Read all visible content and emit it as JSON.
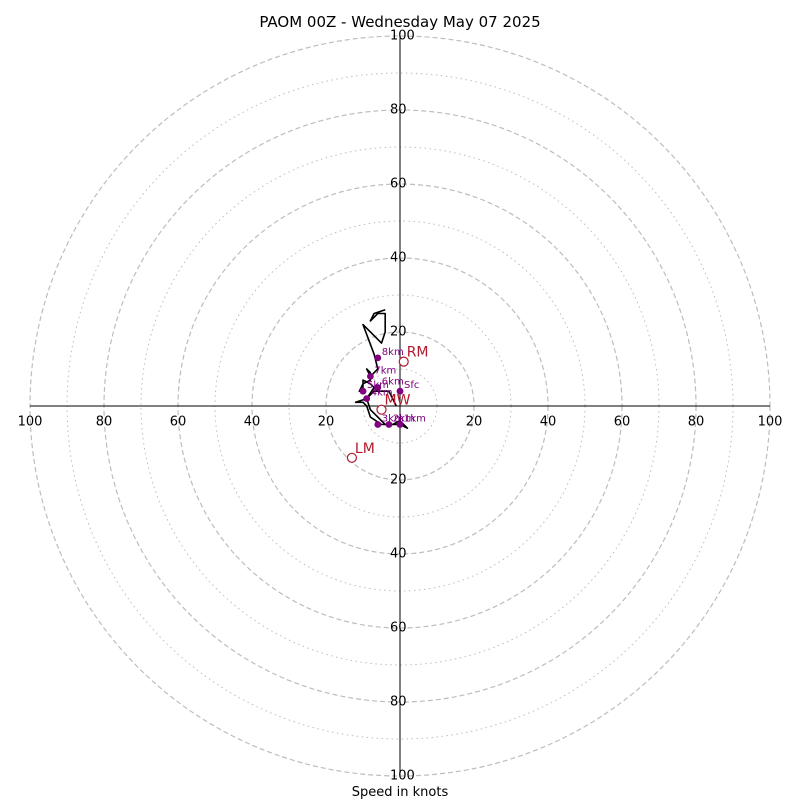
{
  "chart_data": {
    "type": "hodograph",
    "title": "PAOM 00Z - Wednesday May 07 2025",
    "xlabel": "Speed in knots",
    "units": "knots",
    "rings_major": [
      20,
      40,
      60,
      80,
      100
    ],
    "rings_minor": [
      10,
      30,
      50,
      70,
      90
    ],
    "tick_labels": [
      "20",
      "40",
      "60",
      "80",
      "100"
    ],
    "range": [
      -100,
      100
    ],
    "grid": true,
    "colors": {
      "trace": "#000000",
      "levels": "#800080",
      "motion": "#b2182b",
      "grid": "#bdbdbd",
      "axes": "#000000"
    },
    "series": [
      {
        "points": [
          [
            -1,
            0
          ],
          [
            -3,
            4
          ],
          [
            -7,
            4
          ],
          [
            -9,
            2
          ],
          [
            -8,
            -1
          ],
          [
            -6,
            -3
          ],
          [
            -5,
            -4
          ],
          [
            -4,
            -5
          ],
          [
            -3,
            -5
          ],
          [
            0,
            -5
          ],
          [
            2,
            -6
          ],
          [
            0,
            -4
          ],
          [
            -2,
            -5
          ],
          [
            -5,
            -5
          ],
          [
            -8,
            -3
          ],
          [
            -9,
            0
          ],
          [
            -10,
            1
          ],
          [
            -12,
            1
          ],
          [
            -9,
            2
          ],
          [
            -7,
            5
          ],
          [
            -8,
            6
          ],
          [
            -10,
            7
          ],
          [
            -10,
            4
          ],
          [
            -11,
            4
          ],
          [
            -10,
            6
          ],
          [
            -8,
            7
          ],
          [
            -8,
            9
          ],
          [
            -9,
            10
          ],
          [
            -8,
            8
          ],
          [
            -7,
            9
          ],
          [
            -6,
            10
          ],
          [
            -7,
            14
          ],
          [
            -10,
            22
          ],
          [
            -5,
            17
          ],
          [
            -4,
            20
          ],
          [
            -4,
            25
          ],
          [
            -6,
            25
          ],
          [
            -8,
            23
          ],
          [
            -7,
            25
          ],
          [
            -4,
            26
          ]
        ]
      }
    ],
    "levels": [
      {
        "label": "Sfc",
        "u": 0,
        "v": 4
      },
      {
        "label": "1km",
        "u": 0,
        "v": -5
      },
      {
        "label": "2km",
        "u": -3,
        "v": -5
      },
      {
        "label": "3km",
        "u": -6,
        "v": -5
      },
      {
        "label": "4km",
        "u": -9,
        "v": 2
      },
      {
        "label": "5km",
        "u": -10,
        "v": 4
      },
      {
        "label": "6km",
        "u": -6,
        "v": 5
      },
      {
        "label": "7km",
        "u": -8,
        "v": 8
      },
      {
        "label": "8km",
        "u": -6,
        "v": 13
      }
    ],
    "storm_motion": [
      {
        "label": "RM",
        "u": 1,
        "v": 12
      },
      {
        "label": "LM",
        "u": -13,
        "v": -14
      },
      {
        "label": "MW",
        "u": -5,
        "v": -1
      }
    ]
  }
}
